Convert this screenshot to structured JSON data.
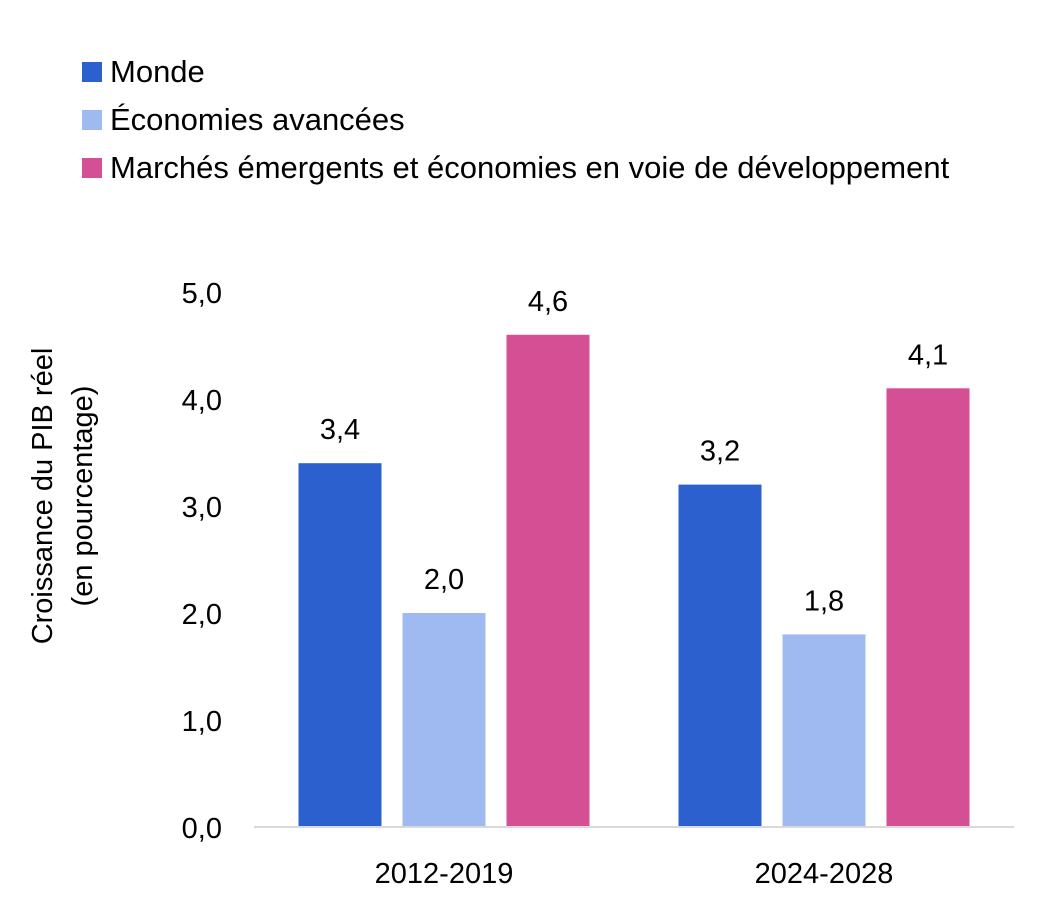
{
  "chart_data": {
    "type": "bar",
    "title": "",
    "xlabel": "",
    "ylabel_line1": "Croissance du PIB réel",
    "ylabel_line2": "(en pourcentage)",
    "categories": [
      "2012-2019",
      "2024-2028"
    ],
    "series": [
      {
        "name": "Monde",
        "color": "#2c60cf",
        "values": [
          3.4,
          3.2
        ],
        "labels": [
          "3,4",
          "3,2"
        ]
      },
      {
        "name": "Économies avancées",
        "color": "#9fbaf0",
        "values": [
          2.0,
          1.8
        ],
        "labels": [
          "2,0",
          "1,8"
        ]
      },
      {
        "name": "Marchés émergents et économies en voie de développement",
        "color": "#d44f94",
        "values": [
          4.6,
          4.1
        ],
        "labels": [
          "4,6",
          "4,1"
        ]
      }
    ],
    "ylim": [
      0,
      5
    ],
    "yticks": [
      0,
      1,
      2,
      3,
      4,
      5
    ],
    "ytick_labels": [
      "0,0",
      "1,0",
      "2,0",
      "3,0",
      "4,0",
      "5,0"
    ],
    "legend_position": "top-left",
    "grid": false
  }
}
